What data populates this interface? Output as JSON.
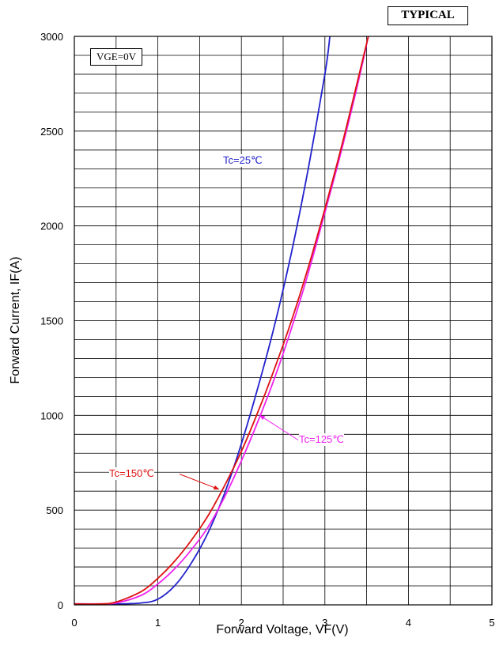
{
  "chart_data": {
    "type": "line",
    "badge": "TYPICAL",
    "condition": "VGE=0V",
    "xlabel": "Forward Voltage, VF(V)",
    "ylabel": "Forward Current, IF(A)",
    "xlim": [
      0,
      5
    ],
    "ylim": [
      0,
      3000
    ],
    "x_ticks": [
      "0",
      "1",
      "2",
      "3",
      "4",
      "5"
    ],
    "y_ticks": [
      "0",
      "500",
      "1000",
      "1500",
      "2000",
      "2500",
      "3000"
    ],
    "grid": true,
    "series": [
      {
        "name": "Tc=25℃",
        "color": "#2222cc",
        "points": [
          [
            0,
            5
          ],
          [
            0.5,
            5
          ],
          [
            0.8,
            10
          ],
          [
            1.0,
            30
          ],
          [
            1.2,
            100
          ],
          [
            1.4,
            220
          ],
          [
            1.6,
            380
          ],
          [
            1.8,
            590
          ],
          [
            2.0,
            850
          ],
          [
            2.2,
            1150
          ],
          [
            2.4,
            1480
          ],
          [
            2.6,
            1860
          ],
          [
            2.8,
            2300
          ],
          [
            3.0,
            2800
          ],
          [
            3.06,
            3000
          ]
        ]
      },
      {
        "name": "Tc=125℃",
        "color": "#ee22ee",
        "points": [
          [
            0,
            5
          ],
          [
            0.3,
            5
          ],
          [
            0.5,
            10
          ],
          [
            0.8,
            50
          ],
          [
            1.0,
            110
          ],
          [
            1.2,
            190
          ],
          [
            1.4,
            290
          ],
          [
            1.6,
            410
          ],
          [
            1.8,
            570
          ],
          [
            2.0,
            760
          ],
          [
            2.2,
            970
          ],
          [
            2.4,
            1200
          ],
          [
            2.6,
            1460
          ],
          [
            2.8,
            1750
          ],
          [
            3.0,
            2070
          ],
          [
            3.2,
            2400
          ],
          [
            3.4,
            2760
          ],
          [
            3.52,
            3000
          ]
        ]
      },
      {
        "name": "Tc=150℃",
        "color": "#dd1111",
        "points": [
          [
            0,
            5
          ],
          [
            0.3,
            5
          ],
          [
            0.5,
            15
          ],
          [
            0.8,
            70
          ],
          [
            1.0,
            140
          ],
          [
            1.2,
            230
          ],
          [
            1.4,
            340
          ],
          [
            1.6,
            470
          ],
          [
            1.8,
            630
          ],
          [
            2.0,
            810
          ],
          [
            2.2,
            1020
          ],
          [
            2.4,
            1250
          ],
          [
            2.6,
            1500
          ],
          [
            2.8,
            1780
          ],
          [
            3.0,
            2090
          ],
          [
            3.2,
            2420
          ],
          [
            3.4,
            2780
          ],
          [
            3.52,
            3000
          ]
        ]
      }
    ],
    "annotations": [
      {
        "text": "Tc=25℃",
        "color": "#2222cc"
      },
      {
        "text": "Tc=125℃",
        "color": "#ee22ee"
      },
      {
        "text": "Tc=150℃",
        "color": "#dd1111"
      }
    ]
  }
}
